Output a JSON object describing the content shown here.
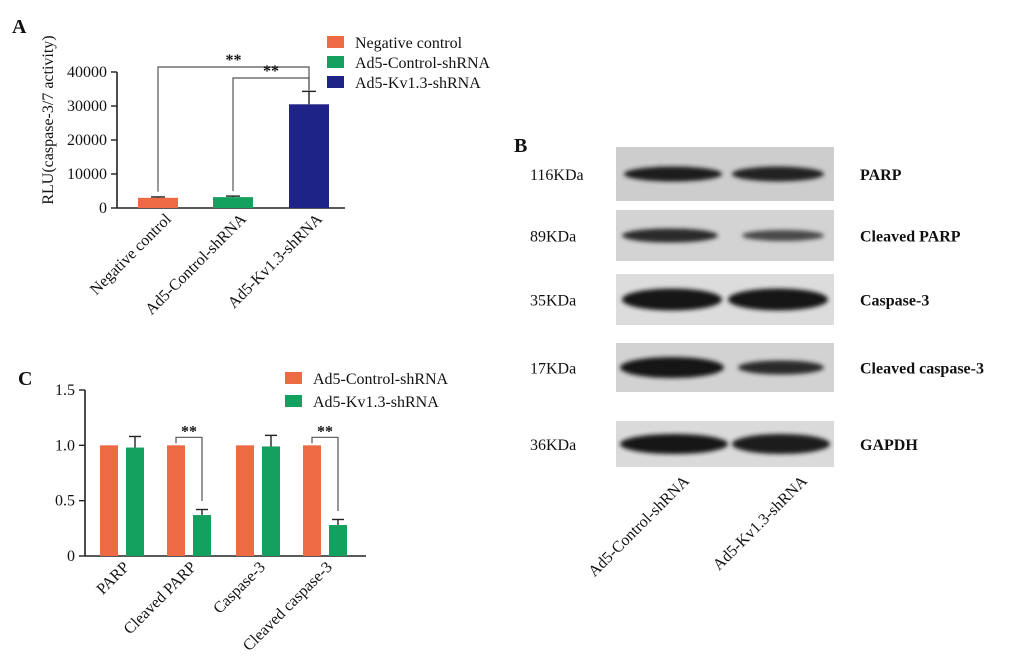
{
  "figure": {
    "panels": {
      "a": "A",
      "b": "B",
      "c": "C"
    }
  },
  "colors": {
    "negative_control": "#EE6A45",
    "ad5_control": "#14A05E",
    "ad5_kv13": "#1E2388",
    "axis": "#222222"
  },
  "chart_data": [
    {
      "panel": "A",
      "type": "bar",
      "categories": [
        "Negative control",
        "Ad5-Control-shRNA",
        "Ad5-Kv1.3-shRNA"
      ],
      "values": [
        3000,
        3200,
        30500
      ],
      "errors": [
        250,
        300,
        3800
      ],
      "series_colors": [
        "negative_control",
        "ad5_control",
        "ad5_kv13"
      ],
      "ylabel": "RLU(caspase-3/7 activity)",
      "ylim": [
        0,
        40000
      ],
      "yticks": [
        "0",
        "10000",
        "20000",
        "30000",
        "40000"
      ],
      "ytick_values": [
        0,
        10000,
        20000,
        30000,
        40000
      ],
      "legend": [
        "Negative control",
        "Ad5-Control-shRNA",
        "Ad5-Kv1.3-shRNA"
      ],
      "legend_placement": "top-right",
      "significance": [
        {
          "from": 0,
          "to": 2,
          "label": "**"
        },
        {
          "from": 1,
          "to": 2,
          "label": "**"
        }
      ]
    },
    {
      "panel": "C",
      "type": "bar",
      "categories": [
        "PARP",
        "Cleaved PARP",
        "Caspase-3",
        "Cleaved caspase-3"
      ],
      "series": [
        {
          "name": "Ad5-Control-shRNA",
          "color": "negative_control",
          "values": [
            1.0,
            1.0,
            1.0,
            1.0
          ],
          "errors": [
            0,
            0,
            0,
            0
          ]
        },
        {
          "name": "Ad5-Kv1.3-shRNA",
          "color": "ad5_control",
          "values": [
            0.98,
            0.37,
            0.99,
            0.28
          ],
          "errors": [
            0.1,
            0.05,
            0.1,
            0.05
          ]
        }
      ],
      "ylim": [
        0,
        1.5
      ],
      "yticks": [
        "0",
        "0.5",
        "1.0",
        "1.5"
      ],
      "ytick_values": [
        0,
        0.5,
        1.0,
        1.5
      ],
      "legend_placement": "top-right",
      "significance": [
        {
          "category": 1,
          "label": "**"
        },
        {
          "category": 3,
          "label": "**"
        }
      ]
    }
  ],
  "blot": {
    "bands": [
      {
        "kda": "116KDa",
        "name": "PARP"
      },
      {
        "kda": "89KDa",
        "name": "Cleaved PARP"
      },
      {
        "kda": "35KDa",
        "name": "Caspase-3"
      },
      {
        "kda": "17KDa",
        "name": "Cleaved caspase-3"
      },
      {
        "kda": "36KDa",
        "name": "GAPDH"
      }
    ],
    "lanes": [
      "Ad5-Control-shRNA",
      "Ad5-Kv1.3-shRNA"
    ]
  }
}
